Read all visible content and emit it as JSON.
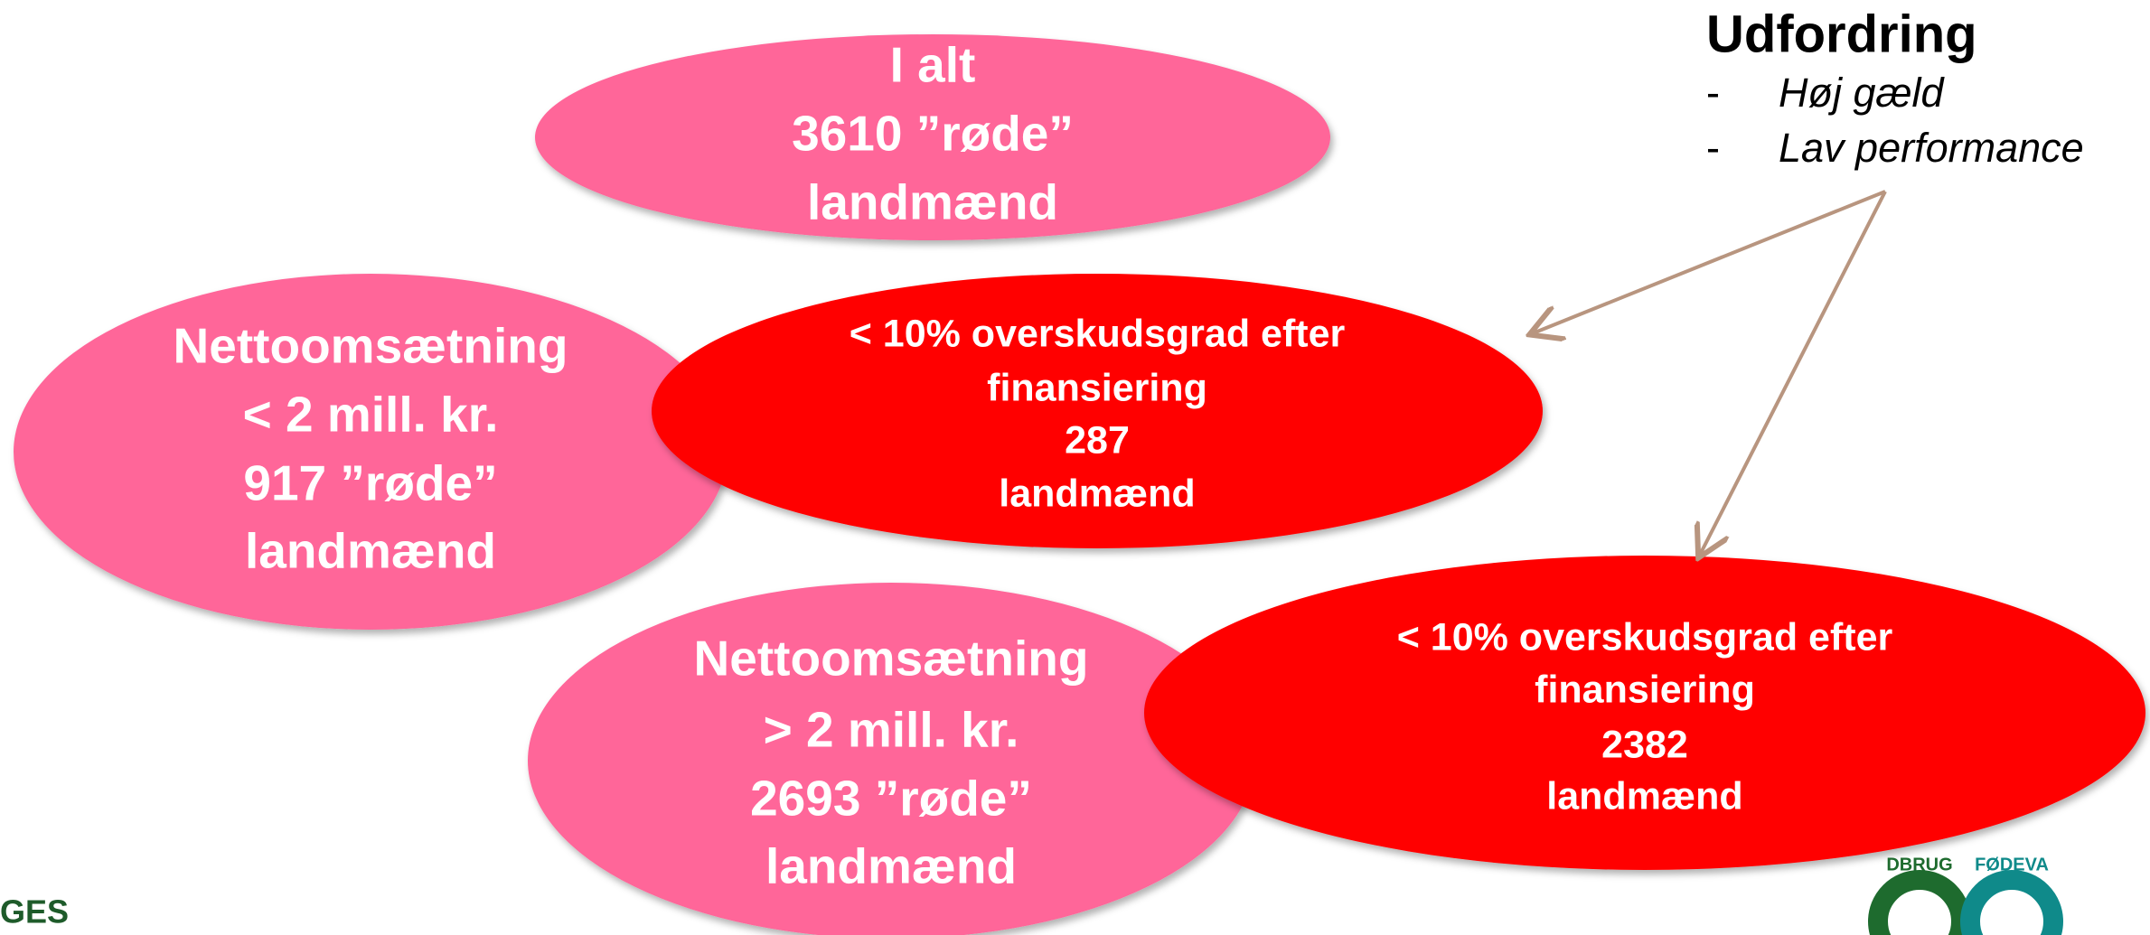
{
  "nodes": [
    {
      "lines": [
        "I alt",
        "3610 ”røde”",
        "landmænd"
      ]
    },
    {
      "lines": [
        "Nettoomsætning",
        "< 2 mill. kr.",
        "917 ”røde”",
        "landmænd"
      ]
    },
    {
      "lines": [
        "< 10% overskudsgrad efter",
        "finansiering",
        "287",
        "landmænd"
      ]
    },
    {
      "lines": [
        "Nettoomsætning",
        "> 2 mill. kr.",
        "2693 ”røde”",
        "landmænd"
      ]
    },
    {
      "lines": [
        "< 10% overskudsgrad efter",
        "finansiering",
        "2382",
        "landmænd"
      ]
    }
  ],
  "challenge": {
    "title": "Udfordring",
    "items": [
      "Høj gæld",
      "Lav performance"
    ],
    "bullet": "-"
  },
  "footer": {
    "left_text": "GES",
    "logo_left": "DBRUG",
    "logo_right": "FØDEVA"
  }
}
